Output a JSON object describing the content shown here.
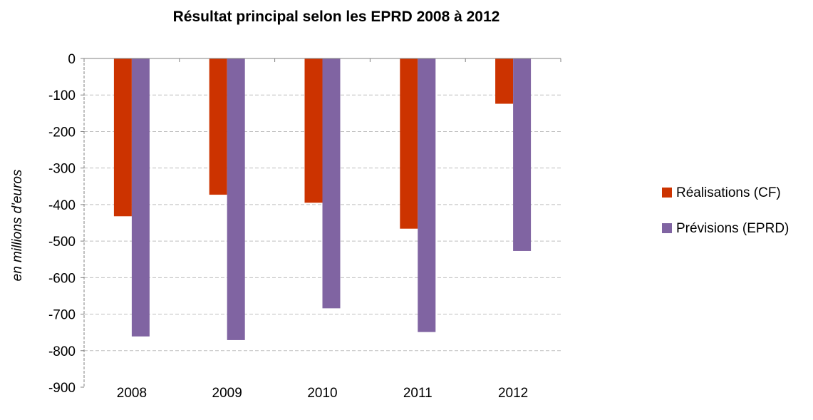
{
  "chart_data": {
    "type": "bar",
    "title": "Résultat principal selon les EPRD 2008 à 2012",
    "ylabel": "en millions d'euros",
    "xlabel": "",
    "categories": [
      "2008",
      "2009",
      "2010",
      "2011",
      "2012"
    ],
    "series": [
      {
        "name": "Réalisations (CF)",
        "color": "#CC3300",
        "values": [
          -432,
          -373,
          -395,
          -466,
          -124
        ]
      },
      {
        "name": "Prévisions (EPRD)",
        "color": "#8064A2",
        "values": [
          -761,
          -771,
          -684,
          -749,
          -527
        ]
      }
    ],
    "ylim": [
      -900,
      0
    ],
    "yticks": [
      0,
      -100,
      -200,
      -300,
      -400,
      -500,
      -600,
      -700,
      -800,
      -900
    ],
    "grid": true,
    "grid_style": "dashed",
    "legend_position": "right"
  }
}
